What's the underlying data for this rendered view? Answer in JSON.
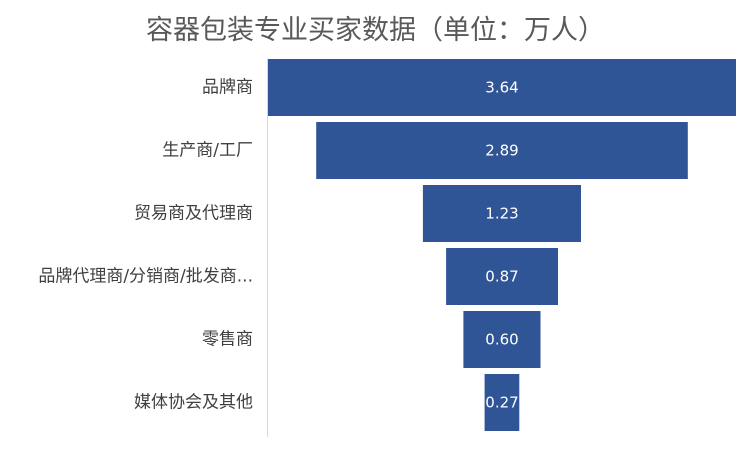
{
  "chart_data": {
    "type": "bar",
    "subtype": "funnel",
    "title": "容器包装专业买家数据（单位：万人）",
    "categories": [
      "品牌商",
      "生产商/工厂",
      "贸易商及代理商",
      "品牌代理商/分销商/批发商...",
      "零售商",
      "媒体协会及其他"
    ],
    "values": [
      3.64,
      2.89,
      1.23,
      0.87,
      0.6,
      0.27
    ],
    "value_labels": [
      "3.64",
      "2.89",
      "1.23",
      "0.87",
      "0.60",
      "0.27"
    ],
    "xlabel": "",
    "ylabel": "",
    "grid": false,
    "legend": "none",
    "bar_color": "#2f5597",
    "label_color": "#ffffff"
  }
}
